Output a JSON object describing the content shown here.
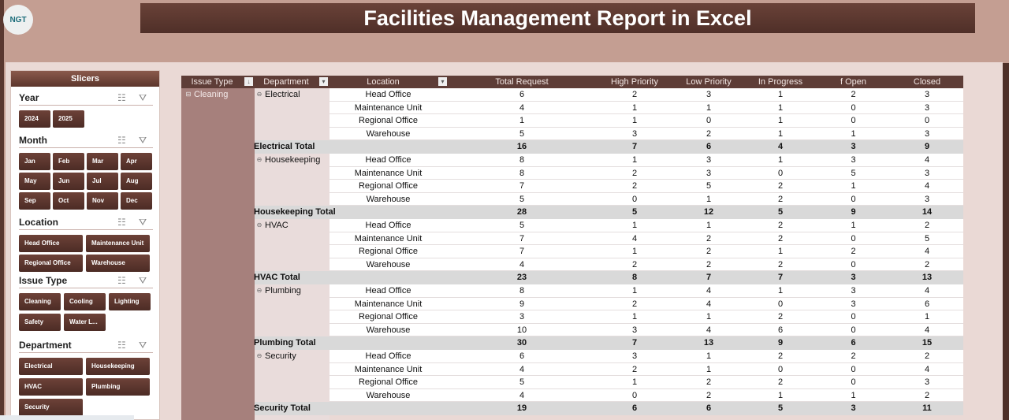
{
  "header": {
    "title": "Facilities Management Report in Excel",
    "logo": "NGT"
  },
  "slicers": {
    "title": "Slicers",
    "sections": [
      {
        "title": "Year",
        "items": [
          "2024",
          "2025"
        ]
      },
      {
        "title": "Month",
        "items": [
          "Jan",
          "Feb",
          "Mar",
          "Apr",
          "May",
          "Jun",
          "Jul",
          "Aug",
          "Sep",
          "Oct",
          "Nov",
          "Dec"
        ]
      },
      {
        "title": "Location",
        "items": [
          "Head Office",
          "Maintenance Unit",
          "Regional Office",
          "Warehouse"
        ]
      },
      {
        "title": "Issue Type",
        "items": [
          "Cleaning",
          "Cooling",
          "Lighting",
          "Safety",
          "Water L..."
        ]
      },
      {
        "title": "Department",
        "items": [
          "Electrical",
          "Housekeeping",
          "HVAC",
          "Plumbing",
          "Security"
        ]
      }
    ]
  },
  "pivot": {
    "headers": [
      "Issue Type",
      "Department",
      "Location",
      "Total Request",
      "High Priority",
      "Low Priority",
      "In Progress",
      "f Open",
      "Closed"
    ],
    "issue_type": "Cleaning",
    "groups": [
      {
        "dept": "Electrical",
        "total_label": "Electrical Total",
        "rows": [
          [
            "Head Office",
            6,
            2,
            3,
            1,
            2,
            3
          ],
          [
            "Maintenance Unit",
            4,
            1,
            1,
            1,
            0,
            3
          ],
          [
            "Regional Office",
            1,
            1,
            0,
            1,
            0,
            0
          ],
          [
            "Warehouse",
            5,
            3,
            2,
            1,
            1,
            3
          ]
        ],
        "total": [
          16,
          7,
          6,
          4,
          3,
          9
        ]
      },
      {
        "dept": "Housekeeping",
        "total_label": "Housekeeping Total",
        "rows": [
          [
            "Head Office",
            8,
            1,
            3,
            1,
            3,
            4
          ],
          [
            "Maintenance Unit",
            8,
            2,
            3,
            0,
            5,
            3
          ],
          [
            "Regional Office",
            7,
            2,
            5,
            2,
            1,
            4
          ],
          [
            "Warehouse",
            5,
            0,
            1,
            2,
            0,
            3
          ]
        ],
        "total": [
          28,
          5,
          12,
          5,
          9,
          14
        ]
      },
      {
        "dept": "HVAC",
        "total_label": "HVAC Total",
        "rows": [
          [
            "Head Office",
            5,
            1,
            1,
            2,
            1,
            2
          ],
          [
            "Maintenance Unit",
            7,
            4,
            2,
            2,
            0,
            5
          ],
          [
            "Regional Office",
            7,
            1,
            2,
            1,
            2,
            4
          ],
          [
            "Warehouse",
            4,
            2,
            2,
            2,
            0,
            2
          ]
        ],
        "total": [
          23,
          8,
          7,
          7,
          3,
          13
        ]
      },
      {
        "dept": "Plumbing",
        "total_label": "Plumbing Total",
        "rows": [
          [
            "Head Office",
            8,
            1,
            4,
            1,
            3,
            4
          ],
          [
            "Maintenance Unit",
            9,
            2,
            4,
            0,
            3,
            6
          ],
          [
            "Regional Office",
            3,
            1,
            1,
            2,
            0,
            1
          ],
          [
            "Warehouse",
            10,
            3,
            4,
            6,
            0,
            4
          ]
        ],
        "total": [
          30,
          7,
          13,
          9,
          6,
          15
        ]
      },
      {
        "dept": "Security",
        "total_label": "Security Total",
        "rows": [
          [
            "Head Office",
            6,
            3,
            1,
            2,
            2,
            2
          ],
          [
            "Maintenance Unit",
            4,
            2,
            1,
            0,
            0,
            4
          ],
          [
            "Regional Office",
            5,
            1,
            2,
            2,
            0,
            3
          ],
          [
            "Warehouse",
            4,
            0,
            2,
            1,
            1,
            2
          ]
        ],
        "total": [
          19,
          6,
          6,
          5,
          3,
          11
        ]
      }
    ]
  }
}
